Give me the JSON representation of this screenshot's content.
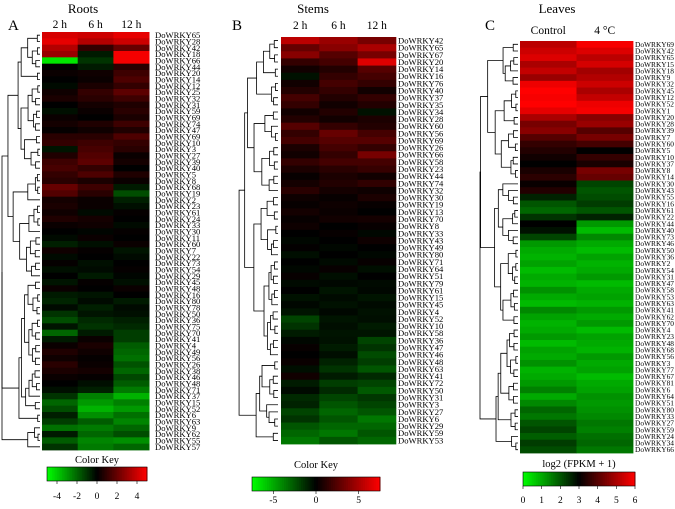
{
  "chart_data": [
    {
      "type": "heatmap",
      "panel_letter": "A",
      "title": "Roots",
      "columns": [
        "2 h",
        "6 h",
        "12 h"
      ],
      "row_labels": [
        "DoWRKY65",
        "DoWRKY28",
        "DoWRKY42",
        "DoWRKY18",
        "DoWRKY66",
        "DoWRKY44",
        "DoWRKY20",
        "DoWRKY14",
        "DoWRKY12",
        "DoWRKY25",
        "DoWRKY32",
        "DoWRKY31",
        "DoWRKY59",
        "DoWRKY69",
        "DoWRKY74",
        "DoWRKY47",
        "DoWRKY69",
        "DoWRKY10",
        "DoWRKY3",
        "DoWRKY27",
        "DoWRKY39",
        "DoWRKY40",
        "DoWRKY5",
        "DoWRKY8",
        "DoWRKY68",
        "DoWRKY19",
        "DoWRKY2",
        "DoWRKY23",
        "DoWRKY61",
        "DoWRKY24",
        "DoWRKY33",
        "DoWRKY30",
        "DoWRKY11",
        "DoWRKY60",
        "DoWRKY7",
        "DoWRKY22",
        "DoWRKY73",
        "DoWRKY54",
        "DoWRKY29",
        "DoWRKY45",
        "DoWRKY48",
        "DoWRKY16",
        "DoWRKY80",
        "DoWRKY78",
        "DoWRKY50",
        "DoWRKY36",
        "DoWRKY75",
        "DoWRKY70",
        "DoWRKY41",
        "DoWRKY4",
        "DoWRKY49",
        "DoWRKY56",
        "DoWRKY26",
        "DoWRKY38",
        "DoWRKY46",
        "DoWRKY48",
        "DoWRKY71",
        "DoWRKY37",
        "DoWRKY15",
        "DoWRKY52",
        "DoWRKY6",
        "DoWRKY63",
        "DoWRKY9",
        "DoWRKY62",
        "DoWRKY55",
        "DoWRKY57"
      ],
      "values": [
        [
          4.2,
          4.0,
          4.5
        ],
        [
          4.5,
          3.5,
          4.0
        ],
        [
          3.5,
          1.0,
          2.0
        ],
        [
          3.0,
          -0.5,
          4.8
        ],
        [
          -4.5,
          -1.0,
          4.8
        ],
        [
          0.0,
          -0.5,
          0.8
        ],
        [
          0.2,
          0.3,
          1.2
        ],
        [
          0.0,
          0.2,
          1.5
        ],
        [
          -0.2,
          0.5,
          1.0
        ],
        [
          0.3,
          1.0,
          1.8
        ],
        [
          0.5,
          0.8,
          1.2
        ],
        [
          0.0,
          0.4,
          0.6
        ],
        [
          -0.3,
          0.2,
          0.8
        ],
        [
          0.2,
          0.0,
          0.5
        ],
        [
          0.4,
          0.6,
          1.2
        ],
        [
          0.1,
          0.3,
          0.6
        ],
        [
          0.8,
          0.8,
          1.5
        ],
        [
          1.0,
          1.2,
          1.0
        ],
        [
          -0.4,
          1.4,
          0.8
        ],
        [
          0.6,
          1.6,
          0.2
        ],
        [
          1.2,
          1.8,
          0.4
        ],
        [
          1.4,
          1.0,
          0.0
        ],
        [
          1.0,
          1.5,
          0.6
        ],
        [
          0.8,
          0.5,
          0.2
        ],
        [
          2.0,
          1.2,
          -0.5
        ],
        [
          1.6,
          0.8,
          -1.5
        ],
        [
          0.4,
          0.2,
          -0.6
        ],
        [
          0.5,
          0.2,
          -0.3
        ],
        [
          0.3,
          -0.2,
          0.1
        ],
        [
          0.6,
          0.4,
          0.0
        ],
        [
          0.2,
          0.3,
          -0.2
        ],
        [
          0.0,
          -0.1,
          0.1
        ],
        [
          -0.2,
          0.2,
          0.0
        ],
        [
          -0.6,
          -0.3,
          0.2
        ],
        [
          0.3,
          0.1,
          -0.4
        ],
        [
          -0.2,
          0.0,
          -0.2
        ],
        [
          0.1,
          -0.3,
          0.0
        ],
        [
          -0.3,
          -0.2,
          0.1
        ],
        [
          0.0,
          -0.5,
          -0.1
        ],
        [
          -0.4,
          0.1,
          -0.3
        ],
        [
          0.2,
          0.0,
          0.2
        ],
        [
          -0.5,
          -0.4,
          0.0
        ],
        [
          -0.7,
          -0.2,
          -0.5
        ],
        [
          -0.2,
          -0.6,
          -0.2
        ],
        [
          -1.0,
          -0.4,
          -0.3
        ],
        [
          -1.5,
          -0.8,
          -0.6
        ],
        [
          -0.4,
          -1.0,
          -0.8
        ],
        [
          -2.0,
          -0.5,
          -1.2
        ],
        [
          -0.5,
          0.2,
          -1.2
        ],
        [
          0.2,
          0.5,
          -1.8
        ],
        [
          0.6,
          0.3,
          -2.0
        ],
        [
          0.3,
          0.1,
          -2.2
        ],
        [
          0.8,
          0.2,
          -1.6
        ],
        [
          0.5,
          0.4,
          -2.0
        ],
        [
          0.2,
          0.1,
          -1.4
        ],
        [
          0.0,
          -0.3,
          -1.8
        ],
        [
          -0.3,
          -0.6,
          -2.4
        ],
        [
          -1.0,
          -2.5,
          -3.5
        ],
        [
          -2.0,
          -3.0,
          -2.5
        ],
        [
          -1.5,
          -3.5,
          -3.0
        ],
        [
          -0.6,
          -2.8,
          -2.2
        ],
        [
          -1.2,
          -1.8,
          -2.6
        ],
        [
          -2.2,
          -2.4,
          -2.0
        ],
        [
          -0.5,
          -2.0,
          -1.5
        ],
        [
          -1.8,
          -2.6,
          -2.8
        ],
        [
          -1.0,
          -2.4,
          -2.0
        ]
      ],
      "color_key": {
        "label": "Color Key",
        "ticks": [
          "-4",
          "-2",
          "0",
          "2",
          "4"
        ],
        "range": [
          -5,
          5
        ],
        "low": "#00ff00",
        "mid": "#000000",
        "high": "#ff0000"
      }
    },
    {
      "type": "heatmap",
      "panel_letter": "B",
      "title": "Stems",
      "columns": [
        "2 h",
        "6 h",
        "12 h"
      ],
      "row_labels": [
        "DoWRKY42",
        "DoWRKY65",
        "DoWRKY67",
        "DoWRKY20",
        "DoWRKY14",
        "DoWRKY16",
        "DoWRKY76",
        "DoWRKY40",
        "DoWRKY37",
        "DoWRKY35",
        "DoWRKY34",
        "DoWRKY28",
        "DoWRKY60",
        "DoWRKY56",
        "DoWRKY69",
        "DoWRKY26",
        "DoWRKY66",
        "DoWRKY58",
        "DoWRKY23",
        "DoWRKY44",
        "DoWRKY74",
        "DoWRKY32",
        "DoWRKY30",
        "DoWRKY19",
        "DoWRKY13",
        "DoWRKY70",
        "DoWRKY8",
        "DoWRKY33",
        "DoWRKY43",
        "DoWRKY49",
        "DoWRKY80",
        "DoWRKY71",
        "DoWRKY64",
        "DoWRKY51",
        "DoWRKY79",
        "DoWRKY61",
        "DoWRKY15",
        "DoWRKY45",
        "DoWRKY4",
        "DoWRKY52",
        "DoWRKY10",
        "DoWRKY58",
        "DoWRKY36",
        "DoWRKY47",
        "DoWRKY46",
        "DoWRKY48",
        "DoWRKY63",
        "DoWRKY41",
        "DoWRKY72",
        "DoWRKY50",
        "DoWRKY31",
        "DoWRKY3",
        "DoWRKY27",
        "DoWRKY6",
        "DoWRKY29",
        "DoWRKY59",
        "DoWRKY53"
      ],
      "values": [
        [
          5.5,
          4.5,
          3.5
        ],
        [
          3.0,
          4.0,
          5.0
        ],
        [
          4.0,
          2.5,
          3.5
        ],
        [
          1.5,
          2.0,
          6.5
        ],
        [
          0.5,
          1.0,
          2.5
        ],
        [
          -0.5,
          1.5,
          2.0
        ],
        [
          0.5,
          2.0,
          1.5
        ],
        [
          1.0,
          1.5,
          0.5
        ],
        [
          2.0,
          1.0,
          1.5
        ],
        [
          1.5,
          0.5,
          1.0
        ],
        [
          0.5,
          1.0,
          -0.5
        ],
        [
          1.0,
          0.5,
          0.8
        ],
        [
          2.5,
          1.5,
          1.0
        ],
        [
          1.5,
          3.0,
          2.0
        ],
        [
          2.0,
          2.5,
          2.5
        ],
        [
          0.8,
          2.0,
          1.5
        ],
        [
          0.5,
          1.5,
          3.5
        ],
        [
          1.5,
          2.0,
          2.0
        ],
        [
          0.8,
          1.2,
          1.6
        ],
        [
          0.2,
          0.8,
          0.5
        ],
        [
          0.6,
          1.0,
          1.4
        ],
        [
          1.2,
          0.6,
          0.4
        ],
        [
          0.4,
          0.2,
          0.8
        ],
        [
          0.2,
          0.4,
          0.2
        ],
        [
          0.6,
          0.3,
          0.0
        ],
        [
          0.2,
          0.5,
          0.6
        ],
        [
          0.4,
          0.0,
          0.2
        ],
        [
          0.0,
          0.2,
          -0.2
        ],
        [
          -0.2,
          0.0,
          0.4
        ],
        [
          0.1,
          -0.2,
          0.0
        ],
        [
          -0.4,
          0.0,
          -0.2
        ],
        [
          0.0,
          -0.3,
          0.2
        ],
        [
          -0.2,
          0.2,
          -0.4
        ],
        [
          0.2,
          -0.4,
          0.0
        ],
        [
          -0.3,
          -0.2,
          -0.3
        ],
        [
          0.0,
          -0.6,
          -0.2
        ],
        [
          -0.5,
          -0.3,
          -0.6
        ],
        [
          -0.2,
          -0.5,
          -0.3
        ],
        [
          -0.6,
          -0.2,
          -0.5
        ],
        [
          -2.0,
          -0.6,
          -0.4
        ],
        [
          -1.5,
          -0.4,
          -0.8
        ],
        [
          -0.8,
          -0.6,
          -0.6
        ],
        [
          -0.2,
          -0.5,
          -2.0
        ],
        [
          0.2,
          -0.8,
          -1.5
        ],
        [
          0.0,
          -0.4,
          -2.2
        ],
        [
          0.3,
          -1.0,
          -1.8
        ],
        [
          -0.4,
          -1.5,
          -2.5
        ],
        [
          0.5,
          -0.8,
          -1.2
        ],
        [
          -0.8,
          -1.8,
          -2.0
        ],
        [
          -0.3,
          -1.2,
          -2.6
        ],
        [
          -1.2,
          -2.0,
          -1.6
        ],
        [
          -1.0,
          -2.5,
          -2.0
        ],
        [
          -2.0,
          -3.0,
          -2.5
        ],
        [
          -1.5,
          -2.5,
          -3.5
        ],
        [
          -2.5,
          -3.0,
          -3.0
        ],
        [
          -3.0,
          -3.5,
          -2.5
        ],
        [
          -3.5,
          -2.5,
          -3.0
        ]
      ],
      "color_key": {
        "label": "Color Key",
        "ticks": [
          "-5",
          "0",
          "5"
        ],
        "range": [
          -7.5,
          7.5
        ],
        "low": "#00ff00",
        "mid": "#000000",
        "high": "#ff0000"
      }
    },
    {
      "type": "heatmap",
      "panel_letter": "C",
      "title": "Leaves",
      "columns": [
        "Control",
        "4 °C"
      ],
      "row_labels": [
        "DoWRKY69",
        "DoWRKY42",
        "DoWRKY65",
        "DoWRKY15",
        "DoWRKY18",
        "DoWRKY9",
        "DoWRKY32",
        "DoWRKY45",
        "DoWRKY12",
        "DoWRKY52",
        "DoWRKY1",
        "DoWRKY20",
        "DoWRKY28",
        "DoWRKY39",
        "DoWRKY7",
        "DoWRKY60",
        "DoWRKY5",
        "DoWRKY10",
        "DoWRKY37",
        "DoWRKY8",
        "DoWRKY14",
        "DoWRKY30",
        "DoWRKY43",
        "DoWRKY55",
        "DoWRKY16",
        "DoWRKY61",
        "DoWRKY22",
        "DoWRKY44",
        "DoWRKY40",
        "DoWRKY73",
        "DoWRKY46",
        "DoWRKY50",
        "DoWRKY36",
        "DoWRKY2",
        "DoWRKY54",
        "DoWRKY31",
        "DoWRKY47",
        "DoWRKY58",
        "DoWRKY53",
        "DoWRKY63",
        "DoWRKY41",
        "DoWRKY62",
        "DoWRKY70",
        "DoWRKY4",
        "DoWRKY23",
        "DoWRKY48",
        "DoWRKY68",
        "DoWRKY56",
        "DoWRKY3",
        "DoWRKY77",
        "DoWRKY67",
        "DoWRKY81",
        "DoWRKY6",
        "DoWRKY64",
        "DoWRKY51",
        "DoWRKY80",
        "DoWRKY33",
        "DoWRKY27",
        "DoWRKY59",
        "DoWRKY24",
        "DoWRKY34",
        "DoWRKY66"
      ],
      "values": [
        [
          5.2,
          5.9
        ],
        [
          5.4,
          5.6
        ],
        [
          5.6,
          5.2
        ],
        [
          5.0,
          5.5
        ],
        [
          5.3,
          4.9
        ],
        [
          4.8,
          5.1
        ],
        [
          5.8,
          5.4
        ],
        [
          6.0,
          5.0
        ],
        [
          5.9,
          5.3
        ],
        [
          6.0,
          5.8
        ],
        [
          5.7,
          5.9
        ],
        [
          5.0,
          4.6
        ],
        [
          4.4,
          4.8
        ],
        [
          4.6,
          4.0
        ],
        [
          4.0,
          4.4
        ],
        [
          3.6,
          3.8
        ],
        [
          3.4,
          3.0
        ],
        [
          3.2,
          3.6
        ],
        [
          3.0,
          3.3
        ],
        [
          3.3,
          4.4
        ],
        [
          3.5,
          4.2
        ],
        [
          3.1,
          2.2
        ],
        [
          3.4,
          2.0
        ],
        [
          2.6,
          2.1
        ],
        [
          2.0,
          2.3
        ],
        [
          1.8,
          2.0
        ],
        [
          2.4,
          2.6
        ],
        [
          3.0,
          1.2
        ],
        [
          2.8,
          0.8
        ],
        [
          2.2,
          1.4
        ],
        [
          1.2,
          1.0
        ],
        [
          1.0,
          0.8
        ],
        [
          0.9,
          1.1
        ],
        [
          1.1,
          0.9
        ],
        [
          0.8,
          1.0
        ],
        [
          1.0,
          1.2
        ],
        [
          0.9,
          0.8
        ],
        [
          1.3,
          1.0
        ],
        [
          1.0,
          1.1
        ],
        [
          0.8,
          0.9
        ],
        [
          1.4,
          1.2
        ],
        [
          1.1,
          1.0
        ],
        [
          0.9,
          1.2
        ],
        [
          1.0,
          0.8
        ],
        [
          1.2,
          1.1
        ],
        [
          0.8,
          1.0
        ],
        [
          1.1,
          0.9
        ],
        [
          1.0,
          1.2
        ],
        [
          1.3,
          1.0
        ],
        [
          0.9,
          1.1
        ],
        [
          1.0,
          0.8
        ],
        [
          1.2,
          1.0
        ],
        [
          1.5,
          1.1
        ],
        [
          1.0,
          1.3
        ],
        [
          1.4,
          1.2
        ],
        [
          1.8,
          1.3
        ],
        [
          1.6,
          1.4
        ],
        [
          2.0,
          1.6
        ],
        [
          2.2,
          1.5
        ],
        [
          1.9,
          1.7
        ],
        [
          2.3,
          1.8
        ],
        [
          2.1,
          1.6
        ]
      ],
      "color_key": {
        "label": "log2 (FPKM + 1)",
        "ticks": [
          "0",
          "1",
          "2",
          "3",
          "4",
          "5",
          "6"
        ],
        "range": [
          0,
          6
        ],
        "low": "#00ff00",
        "mid": "#000000",
        "high": "#ff0000",
        "mid_value": 3
      }
    }
  ]
}
